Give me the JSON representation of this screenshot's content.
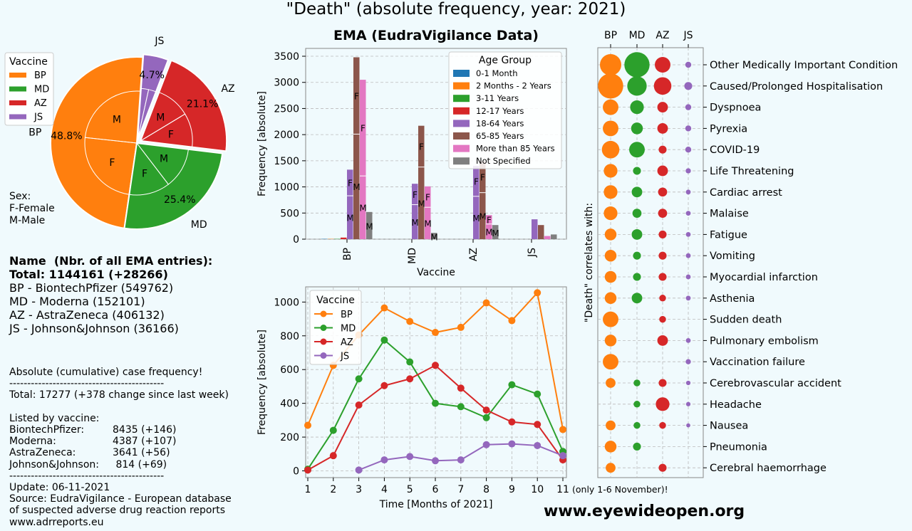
{
  "page": {
    "title": "\"Death\" (absolute frequency, year: 2021)",
    "website": "www.eyewideopen.org"
  },
  "sex_note": {
    "heading": "Sex:",
    "female": "F-Female",
    "male": "M-Male"
  },
  "names": {
    "heading": "Name  (Nbr. of all EMA entries):",
    "total": "Total: 1144161 (+28266)",
    "bp": "BP - BiontechPfizer (549762)",
    "md": "MD - Moderna (152101)",
    "az": "AZ - AstraZeneca (406132)",
    "js": "JS - Johnson&Johnson (36166)"
  },
  "frequency_note": {
    "heading": "Absolute (cumulative) case frequency!",
    "divider": "-------------------------------------------",
    "total": "Total: 17277 (+378 change since last week)",
    "listed": "Listed by vaccine:",
    "rows": [
      {
        "name": "BiontechPfizer:",
        "value": "8435 (+146)"
      },
      {
        "name": "Moderna:",
        "value": "4387 (+107)"
      },
      {
        "name": "AstraZeneca:",
        "value": "3641 (+56)"
      },
      {
        "name": "Johnson&Johnson:",
        "value": " 814 (+69)"
      }
    ],
    "update": "Update: 06-11-2021",
    "source1": "Source: EudraVigilance - European database",
    "source2": "of suspected adverse drug reaction reports",
    "source3": "www.adrreports.eu"
  },
  "colors": {
    "bp": "#ff7f0e",
    "md": "#2ca02c",
    "az": "#d62728",
    "js": "#9467bd",
    "c_0_1": "#1f77b4",
    "c_2m": "#ff7f0e",
    "c_3_11": "#2ca02c",
    "c_12_17": "#d62728",
    "c_18_64": "#9467bd",
    "c_65_85": "#8c564b",
    "c_85p": "#e377c2",
    "c_ns": "#7f7f7f"
  },
  "chart_data": [
    {
      "type": "pie",
      "legend": {
        "title": "Vaccine",
        "placement": "upper-left"
      },
      "outer": [
        {
          "label": "BP",
          "value": 48.8,
          "pct_label": "48.8%"
        },
        {
          "label": "MD",
          "value": 25.4,
          "pct_label": "25.4%"
        },
        {
          "label": "AZ",
          "value": 21.1,
          "pct_label": "21.1%"
        },
        {
          "label": "JS",
          "value": 4.7,
          "pct_label": "4.7%"
        }
      ],
      "inner_sex_labels": {
        "BP": [
          "M",
          "F"
        ],
        "MD": [
          "F",
          "M"
        ],
        "AZ": [
          "F",
          "M"
        ],
        "JS": []
      },
      "inner_sex_split": {
        "BP": [
          0.5,
          0.5
        ],
        "MD": [
          0.5,
          0.5
        ],
        "AZ": [
          0.5,
          0.5
        ],
        "JS": [
          0.5,
          0.5
        ]
      }
    },
    {
      "type": "bar",
      "title": "EMA (EudraVigilance Data)",
      "xlabel": "Vaccine",
      "ylabel": "Frequency [absolute]",
      "ylim": [
        0,
        3650
      ],
      "yticks": [
        0,
        500,
        1000,
        1500,
        2000,
        2500,
        3000,
        3500
      ],
      "grid": true,
      "categories": [
        "BP",
        "MD",
        "AZ",
        "JS"
      ],
      "legend": {
        "title": "Age Group",
        "placement": "upper-right"
      },
      "series": [
        {
          "name": "0-1 Month",
          "values": [
            5,
            0,
            0,
            0
          ]
        },
        {
          "name": "2 Months - 2 Years",
          "values": [
            5,
            0,
            0,
            0
          ]
        },
        {
          "name": "3-11 Years",
          "values": [
            5,
            0,
            0,
            0
          ]
        },
        {
          "name": "12-17 Years",
          "values": [
            30,
            0,
            0,
            0
          ]
        },
        {
          "name": "18-64 Years",
          "values": [
            1330,
            1060,
            1400,
            380
          ],
          "F": [
            500,
            400,
            580,
            0
          ],
          "M": [
            830,
            660,
            820,
            0
          ]
        },
        {
          "name": "65-85 Years",
          "values": [
            3480,
            2170,
            1490,
            270
          ],
          "F": [
            1470,
            790,
            600,
            0
          ],
          "M": [
            2010,
            1380,
            890,
            0
          ]
        },
        {
          "name": "More than 85 Years",
          "values": [
            3050,
            1010,
            460,
            60
          ],
          "F": [
            1840,
            400,
            170,
            0
          ],
          "M": [
            1210,
            610,
            290,
            0
          ]
        },
        {
          "name": "Not Specified",
          "values": [
            520,
            120,
            270,
            90
          ],
          "M": [
            500,
            100,
            250,
            0
          ]
        }
      ]
    },
    {
      "type": "line",
      "xlabel": "Time [Months of 2021]",
      "ylabel": "Frequency [absolute]",
      "x_note": "(only 1-6 November)!",
      "x": [
        1,
        2,
        3,
        4,
        5,
        6,
        7,
        8,
        9,
        10,
        11
      ],
      "ylim": [
        -40,
        1090
      ],
      "yticks": [
        0,
        200,
        400,
        600,
        800,
        1000
      ],
      "grid": true,
      "legend": {
        "title": "Vaccine",
        "placement": "upper-left"
      },
      "series": [
        {
          "name": "BP",
          "values": [
            270,
            625,
            805,
            965,
            885,
            820,
            850,
            995,
            890,
            1055,
            245
          ]
        },
        {
          "name": "MD",
          "values": [
            10,
            240,
            545,
            775,
            645,
            400,
            380,
            315,
            510,
            455,
            115
          ]
        },
        {
          "name": "AZ",
          "values": [
            5,
            90,
            390,
            505,
            545,
            625,
            490,
            360,
            290,
            275,
            65
          ]
        },
        {
          "name": "JS",
          "values": [
            null,
            null,
            5,
            65,
            85,
            60,
            65,
            155,
            160,
            150,
            90
          ]
        }
      ]
    },
    {
      "type": "scatter",
      "ylabel": "\"Death\" correlates with:",
      "columns": [
        "BP",
        "MD",
        "AZ",
        "JS"
      ],
      "rows": [
        {
          "label": "Other Medically Important Condition",
          "sizes": [
            5,
            6,
            3.5,
            1
          ]
        },
        {
          "label": "Caused/Prolonged Hospitalisation",
          "sizes": [
            6,
            4.5,
            4,
            1.5
          ]
        },
        {
          "label": "Dyspnoea",
          "sizes": [
            3.5,
            3,
            2.2,
            1
          ]
        },
        {
          "label": "Pyrexia",
          "sizes": [
            3.5,
            2.5,
            2.2,
            1
          ]
        },
        {
          "label": "COVID-19",
          "sizes": [
            4,
            3.5,
            1.5,
            1
          ]
        },
        {
          "label": "Life Threatening",
          "sizes": [
            3,
            1.5,
            2.2,
            0.8
          ]
        },
        {
          "label": "Cardiac arrest",
          "sizes": [
            3,
            2.2,
            1.8,
            0.7
          ]
        },
        {
          "label": "Malaise",
          "sizes": [
            3,
            1.8,
            1.8,
            0.7
          ]
        },
        {
          "label": "Fatigue",
          "sizes": [
            2.5,
            2.2,
            1.5,
            0.7
          ]
        },
        {
          "label": "Vomiting",
          "sizes": [
            2.5,
            1.5,
            1.5,
            0.7
          ]
        },
        {
          "label": "Myocardial infarction",
          "sizes": [
            2.5,
            1.5,
            1.5,
            0.7
          ]
        },
        {
          "label": "Asthenia",
          "sizes": [
            2.5,
            2.2,
            1.2,
            0.7
          ]
        },
        {
          "label": "Sudden death",
          "sizes": [
            3.5,
            0,
            1.2,
            0
          ]
        },
        {
          "label": "Pulmonary embolism",
          "sizes": [
            2.5,
            0,
            2.2,
            0.7
          ]
        },
        {
          "label": "Vaccination failure",
          "sizes": [
            3.5,
            0,
            0,
            0.8
          ]
        },
        {
          "label": "Cerebrovascular accident",
          "sizes": [
            2,
            1.2,
            1.5,
            0.6
          ]
        },
        {
          "label": "Headache",
          "sizes": [
            0,
            1.2,
            3,
            0.6
          ]
        },
        {
          "label": "Nausea",
          "sizes": [
            2,
            1.2,
            1.2,
            0.5
          ]
        },
        {
          "label": "Pneumonia",
          "sizes": [
            2.5,
            1.5,
            0,
            0
          ]
        },
        {
          "label": "Cerebral haemorrhage",
          "sizes": [
            2,
            0,
            1.5,
            0
          ]
        }
      ]
    }
  ]
}
